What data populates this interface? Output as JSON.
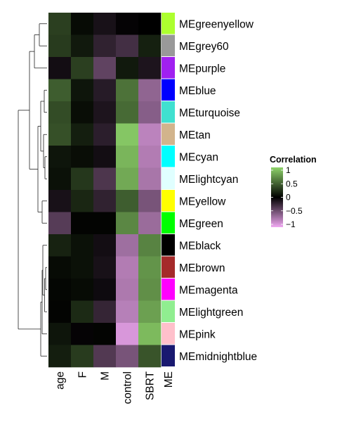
{
  "chart_data": {
    "type": "heatmap",
    "title": "",
    "xlabel": "",
    "ylabel": "",
    "columns": [
      "age",
      "F",
      "M",
      "control",
      "SBRT"
    ],
    "color_column_label": "ME",
    "rows": [
      {
        "name": "MEgreenyellow",
        "color": "#ADFF2F",
        "values": [
          0.3,
          0.05,
          -0.1,
          -0.02,
          0.0
        ]
      },
      {
        "name": "MEgrey60",
        "color": "#999999",
        "values": [
          0.28,
          0.12,
          -0.2,
          -0.28,
          0.15
        ]
      },
      {
        "name": "MEpurple",
        "color": "#A020F0",
        "values": [
          -0.08,
          0.3,
          -0.4,
          0.12,
          -0.12
        ]
      },
      {
        "name": "MEblue",
        "color": "#0000FF",
        "values": [
          0.44,
          0.1,
          -0.16,
          0.54,
          -0.6
        ]
      },
      {
        "name": "MEturquoise",
        "color": "#40E0D0",
        "values": [
          0.36,
          0.06,
          -0.12,
          0.5,
          -0.56
        ]
      },
      {
        "name": "MEtan",
        "color": "#D2B48C",
        "values": [
          0.38,
          0.14,
          -0.18,
          0.94,
          -0.78
        ]
      },
      {
        "name": "MEcyan",
        "color": "#00FFFF",
        "values": [
          0.1,
          0.06,
          -0.08,
          0.86,
          -0.74
        ]
      },
      {
        "name": "MElightcyan",
        "color": "#E0FFFF",
        "values": [
          0.08,
          0.26,
          -0.32,
          0.8,
          -0.7
        ]
      },
      {
        "name": "MEyellow",
        "color": "#FFFF00",
        "values": [
          -0.1,
          0.18,
          -0.2,
          0.44,
          -0.5
        ]
      },
      {
        "name": "MEgreen",
        "color": "#00FF00",
        "values": [
          -0.36,
          0.02,
          0.02,
          0.64,
          -0.64
        ]
      },
      {
        "name": "MEblack",
        "color": "#000000",
        "values": [
          0.16,
          0.08,
          -0.08,
          -0.66,
          0.62
        ]
      },
      {
        "name": "MEbrown",
        "color": "#A52A2A",
        "values": [
          0.05,
          0.08,
          -0.1,
          -0.74,
          0.7
        ]
      },
      {
        "name": "MEmagenta",
        "color": "#FF00FF",
        "values": [
          0.03,
          0.05,
          -0.06,
          -0.72,
          0.68
        ]
      },
      {
        "name": "MElightgreen",
        "color": "#90EE90",
        "values": [
          0.02,
          0.2,
          -0.22,
          -0.76,
          0.76
        ]
      },
      {
        "name": "MEpink",
        "color": "#FFC0CB",
        "values": [
          0.1,
          -0.02,
          0.02,
          -0.9,
          0.88
        ]
      },
      {
        "name": "MEmidnightblue",
        "color": "#191970",
        "values": [
          0.14,
          0.28,
          -0.34,
          -0.5,
          0.4
        ]
      }
    ],
    "legend": {
      "title": "Correlation",
      "ticks": [
        1,
        0.5,
        0,
        -0.5,
        -1
      ],
      "tick_labels": [
        "1",
        "0.5",
        "0",
        "−0.5",
        "−1"
      ],
      "placement": "right",
      "scale_colors": {
        "high": "#8ED36A",
        "mid": "#000000",
        "low": "#F0A8F2"
      }
    },
    "dendrogram": "left"
  }
}
